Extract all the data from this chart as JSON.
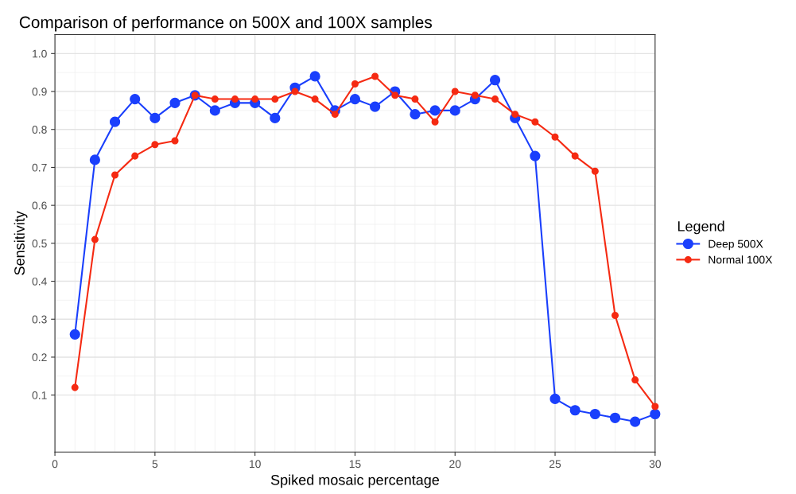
{
  "chart_data": {
    "type": "line",
    "title": "Comparison of performance on 500X and 100X samples",
    "xlabel": "Spiked mosaic percentage",
    "ylabel": "Sensitivity",
    "legend_title": "Legend",
    "x": [
      1,
      2,
      3,
      4,
      5,
      6,
      7,
      8,
      9,
      10,
      11,
      12,
      13,
      14,
      15,
      16,
      17,
      18,
      19,
      20,
      21,
      22,
      23,
      24,
      25,
      26,
      27,
      28,
      29,
      30
    ],
    "series": [
      {
        "name": "Deep 500X",
        "color": "#1a3ffc",
        "values": [
          0.26,
          0.72,
          0.82,
          0.88,
          0.83,
          0.87,
          0.89,
          0.85,
          0.87,
          0.87,
          0.83,
          0.91,
          0.94,
          0.85,
          0.88,
          0.86,
          0.9,
          0.84,
          0.85,
          0.85,
          0.88,
          0.93,
          0.83,
          0.73,
          0.09,
          0.06,
          0.05,
          0.04,
          0.03,
          0.05
        ]
      },
      {
        "name": "Normal 100X",
        "color": "#f52a12",
        "values": [
          0.12,
          0.51,
          0.68,
          0.73,
          0.76,
          0.77,
          0.89,
          0.88,
          0.88,
          0.88,
          0.88,
          0.9,
          0.88,
          0.84,
          0.92,
          0.94,
          0.89,
          0.88,
          0.82,
          0.9,
          0.89,
          0.88,
          0.84,
          0.82,
          0.78,
          0.73,
          0.69,
          0.31,
          0.14,
          0.07
        ]
      }
    ],
    "xlim": [
      0,
      30
    ],
    "xticks": [
      0,
      5,
      10,
      15,
      20,
      25,
      30
    ],
    "ylim": [
      -0.05,
      1.05
    ],
    "yticks": [
      0.1,
      0.2,
      0.3,
      0.4,
      0.5,
      0.6,
      0.7,
      0.8,
      0.9,
      {
        "value": 1,
        "label": "1.0"
      }
    ],
    "grid": true,
    "legend": "right",
    "marker": "circle",
    "line_style": "solid"
  }
}
